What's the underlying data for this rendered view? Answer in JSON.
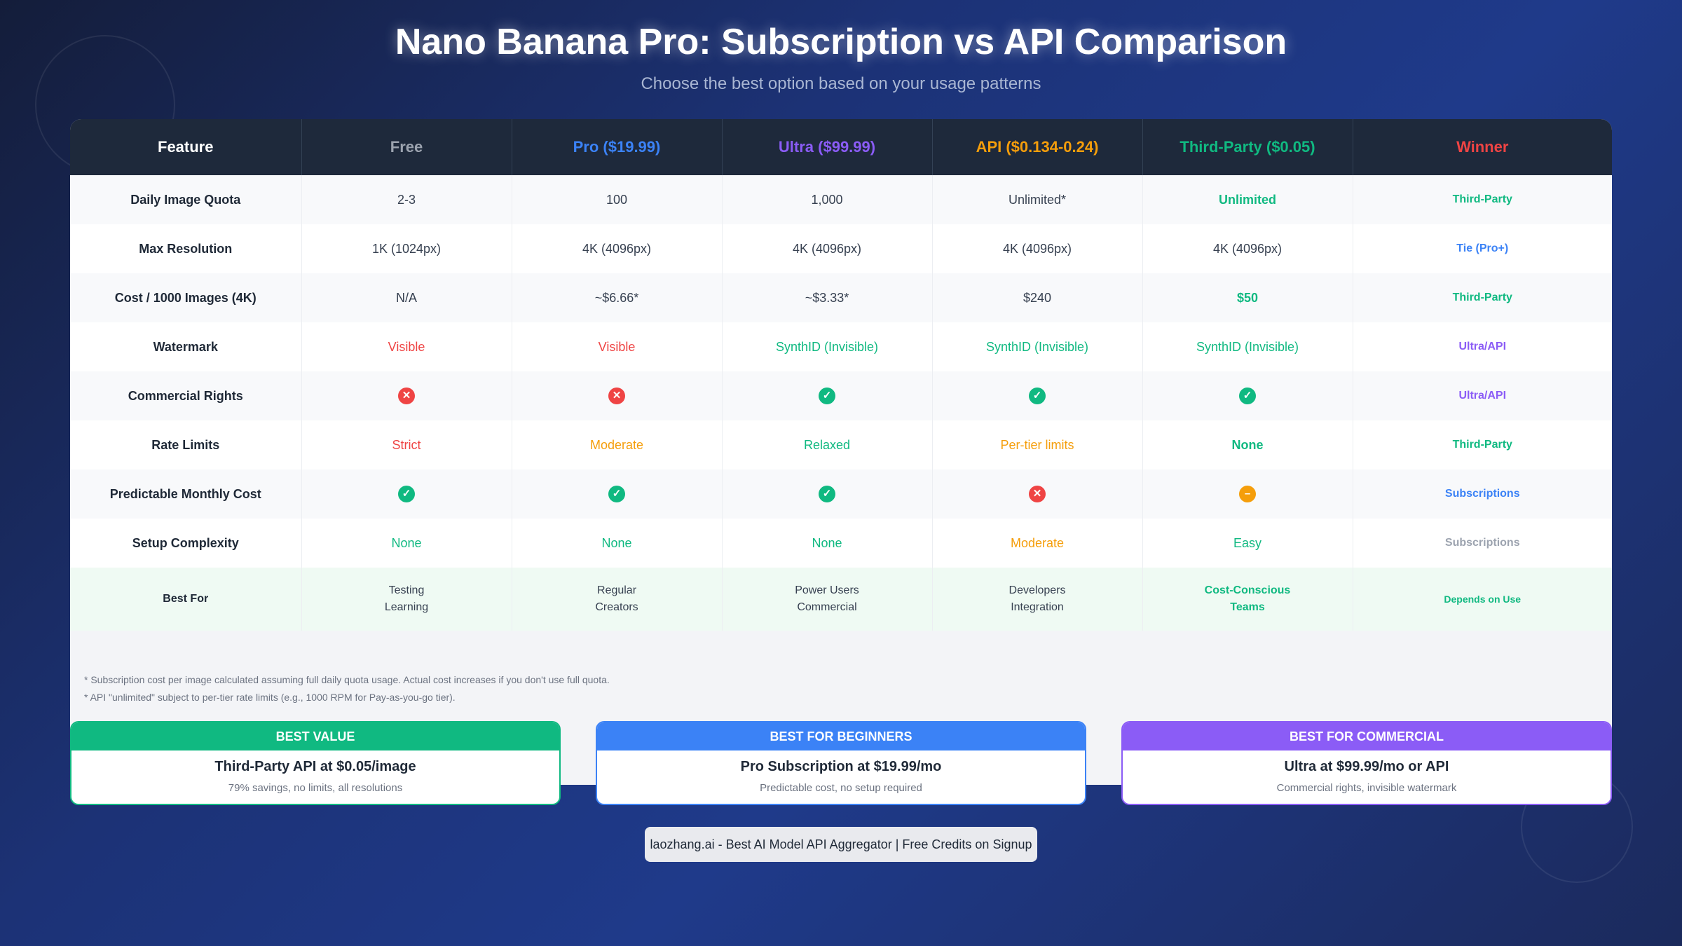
{
  "title": "Nano Banana Pro: Subscription vs API Comparison",
  "subtitle": "Choose the best option based on your usage patterns",
  "colors": {
    "green": "#10b981",
    "red": "#ef4444",
    "blue": "#3b82f6",
    "purple": "#8b5cf6",
    "orange": "#f59e0b",
    "gray": "#9ca3af"
  },
  "headers": [
    {
      "label": "Feature",
      "color": "#ffffff"
    },
    {
      "label": "Free",
      "color": "#9ca3af"
    },
    {
      "label": "Pro ($19.99)",
      "color": "#3b82f6"
    },
    {
      "label": "Ultra ($99.99)",
      "color": "#8b5cf6"
    },
    {
      "label": "API ($0.134-0.24)",
      "color": "#f59e0b"
    },
    {
      "label": "Third-Party ($0.05)",
      "color": "#10b981"
    },
    {
      "label": "Winner",
      "color": "#ef4444"
    }
  ],
  "rows": [
    {
      "feature": "Daily Image Quota",
      "cells": [
        {
          "text": "2-3"
        },
        {
          "text": "100"
        },
        {
          "text": "1,000"
        },
        {
          "text": "Unlimited*"
        },
        {
          "text": "Unlimited",
          "color": "#10b981",
          "bold": true
        }
      ],
      "winner": {
        "text": "Third-Party",
        "color": "#10b981"
      }
    },
    {
      "feature": "Max Resolution",
      "cells": [
        {
          "text": "1K (1024px)"
        },
        {
          "text": "4K (4096px)"
        },
        {
          "text": "4K (4096px)"
        },
        {
          "text": "4K (4096px)"
        },
        {
          "text": "4K (4096px)"
        }
      ],
      "winner": {
        "text": "Tie (Pro+)",
        "color": "#3b82f6"
      }
    },
    {
      "feature": "Cost / 1000 Images (4K)",
      "cells": [
        {
          "text": "N/A"
        },
        {
          "text": "~$6.66*"
        },
        {
          "text": "~$3.33*"
        },
        {
          "text": "$240"
        },
        {
          "text": "$50",
          "color": "#10b981",
          "bold": true
        }
      ],
      "winner": {
        "text": "Third-Party",
        "color": "#10b981"
      }
    },
    {
      "feature": "Watermark",
      "cells": [
        {
          "text": "Visible",
          "color": "#ef4444"
        },
        {
          "text": "Visible",
          "color": "#ef4444"
        },
        {
          "text": "SynthID (Invisible)",
          "color": "#10b981"
        },
        {
          "text": "SynthID (Invisible)",
          "color": "#10b981"
        },
        {
          "text": "SynthID (Invisible)",
          "color": "#10b981"
        }
      ],
      "winner": {
        "text": "Ultra/API",
        "color": "#8b5cf6"
      }
    },
    {
      "feature": "Commercial Rights",
      "cells": [
        {
          "icon": "x-circle-icon"
        },
        {
          "icon": "x-circle-icon"
        },
        {
          "icon": "check-circle-icon"
        },
        {
          "icon": "check-circle-icon"
        },
        {
          "icon": "check-circle-icon"
        }
      ],
      "winner": {
        "text": "Ultra/API",
        "color": "#8b5cf6"
      }
    },
    {
      "feature": "Rate Limits",
      "cells": [
        {
          "text": "Strict",
          "color": "#ef4444"
        },
        {
          "text": "Moderate",
          "color": "#f59e0b"
        },
        {
          "text": "Relaxed",
          "color": "#10b981"
        },
        {
          "text": "Per-tier limits",
          "color": "#f59e0b"
        },
        {
          "text": "None",
          "color": "#10b981",
          "bold": true
        }
      ],
      "winner": {
        "text": "Third-Party",
        "color": "#10b981"
      }
    },
    {
      "feature": "Predictable Monthly Cost",
      "cells": [
        {
          "icon": "check-circle-icon"
        },
        {
          "icon": "check-circle-icon"
        },
        {
          "icon": "check-circle-icon"
        },
        {
          "icon": "x-circle-icon"
        },
        {
          "icon": "minus-circle-icon"
        }
      ],
      "winner": {
        "text": "Subscriptions",
        "color": "#3b82f6"
      }
    },
    {
      "feature": "Setup Complexity",
      "cells": [
        {
          "text": "None",
          "color": "#10b981"
        },
        {
          "text": "None",
          "color": "#10b981"
        },
        {
          "text": "None",
          "color": "#10b981"
        },
        {
          "text": "Moderate",
          "color": "#f59e0b"
        },
        {
          "text": "Easy",
          "color": "#10b981"
        }
      ],
      "winner": {
        "text": "Subscriptions",
        "color": "#9ca3af"
      }
    },
    {
      "feature": "Best For",
      "best": true,
      "cells": [
        {
          "lines": [
            "Testing",
            "Learning"
          ]
        },
        {
          "lines": [
            "Regular",
            "Creators"
          ]
        },
        {
          "lines": [
            "Power Users",
            "Commercial"
          ]
        },
        {
          "lines": [
            "Developers",
            "Integration"
          ]
        },
        {
          "lines": [
            "Cost-Conscious",
            "Teams"
          ],
          "color": "#10b981",
          "bold": true
        }
      ],
      "winner": {
        "text": "Depends on Use",
        "color": "#10b981",
        "small": true
      }
    }
  ],
  "notes": [
    "* Subscription cost per image calculated assuming full daily quota usage. Actual cost increases if you don't use full quota.",
    "* API \"unlimited\" subject to per-tier rate limits (e.g., 1000 RPM for Pay-as-you-go tier)."
  ],
  "cards": [
    {
      "header": "BEST VALUE",
      "title": "Third-Party API at $0.05/image",
      "desc": "79% savings, no limits, all resolutions",
      "color": "#10b981"
    },
    {
      "header": "BEST FOR BEGINNERS",
      "title": "Pro Subscription at $19.99/mo",
      "desc": "Predictable cost, no setup required",
      "color": "#3b82f6"
    },
    {
      "header": "BEST FOR COMMERCIAL",
      "title": "Ultra at $99.99/mo or API",
      "desc": "Commercial rights, invisible watermark",
      "color": "#8b5cf6"
    }
  ],
  "footer": "laozhang.ai - Best AI Model API Aggregator | Free Credits on Signup"
}
